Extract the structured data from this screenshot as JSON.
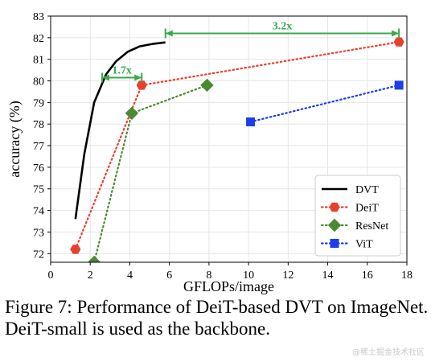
{
  "chart_data": {
    "type": "line",
    "xlabel": "GFLOPs/image",
    "ylabel": "accuracy (%)",
    "xlim": [
      0,
      18
    ],
    "ylim": [
      71.6,
      83
    ],
    "xticks": [
      0,
      2,
      4,
      6,
      8,
      10,
      12,
      14,
      16,
      18
    ],
    "yticks": [
      72,
      73,
      74,
      75,
      76,
      77,
      78,
      79,
      80,
      81,
      82,
      83
    ],
    "grid": true,
    "legend_position": "bottom-right",
    "series": [
      {
        "name": "DVT",
        "color": "#000000",
        "style": "solid",
        "marker": "none",
        "x": [
          1.25,
          1.7,
          2.2,
          2.8,
          3.3,
          3.9,
          4.5,
          5.2,
          5.8
        ],
        "y": [
          73.6,
          76.6,
          79.0,
          80.3,
          80.9,
          81.35,
          81.6,
          81.72,
          81.78
        ]
      },
      {
        "name": "DeiT",
        "color": "#e8402e",
        "style": "dotted",
        "marker": "hexagon",
        "x": [
          1.25,
          4.6,
          17.6
        ],
        "y": [
          72.2,
          79.8,
          81.8
        ]
      },
      {
        "name": "ResNet",
        "color": "#4a8a34",
        "style": "dotted",
        "marker": "diamond",
        "x": [
          2.2,
          4.1,
          7.9
        ],
        "y": [
          71.6,
          78.5,
          79.8
        ]
      },
      {
        "name": "ViT",
        "color": "#1f3de8",
        "style": "dotted",
        "marker": "square",
        "x": [
          10.1,
          17.6
        ],
        "y": [
          78.1,
          79.8
        ]
      }
    ],
    "annotations": [
      {
        "text": "3.2x",
        "x_from": 5.8,
        "x_to": 17.6,
        "y": 82.2,
        "color": "#3aa84e"
      },
      {
        "text": "1.7x",
        "x_from": 2.6,
        "x_to": 4.6,
        "y": 80.15,
        "color": "#3aa84e"
      }
    ]
  },
  "caption": "Figure 7: Performance of DeiT-based DVT on ImageNet. DeiT-small is used as the backbone.",
  "watermark": "@稀土掘金技术社区"
}
